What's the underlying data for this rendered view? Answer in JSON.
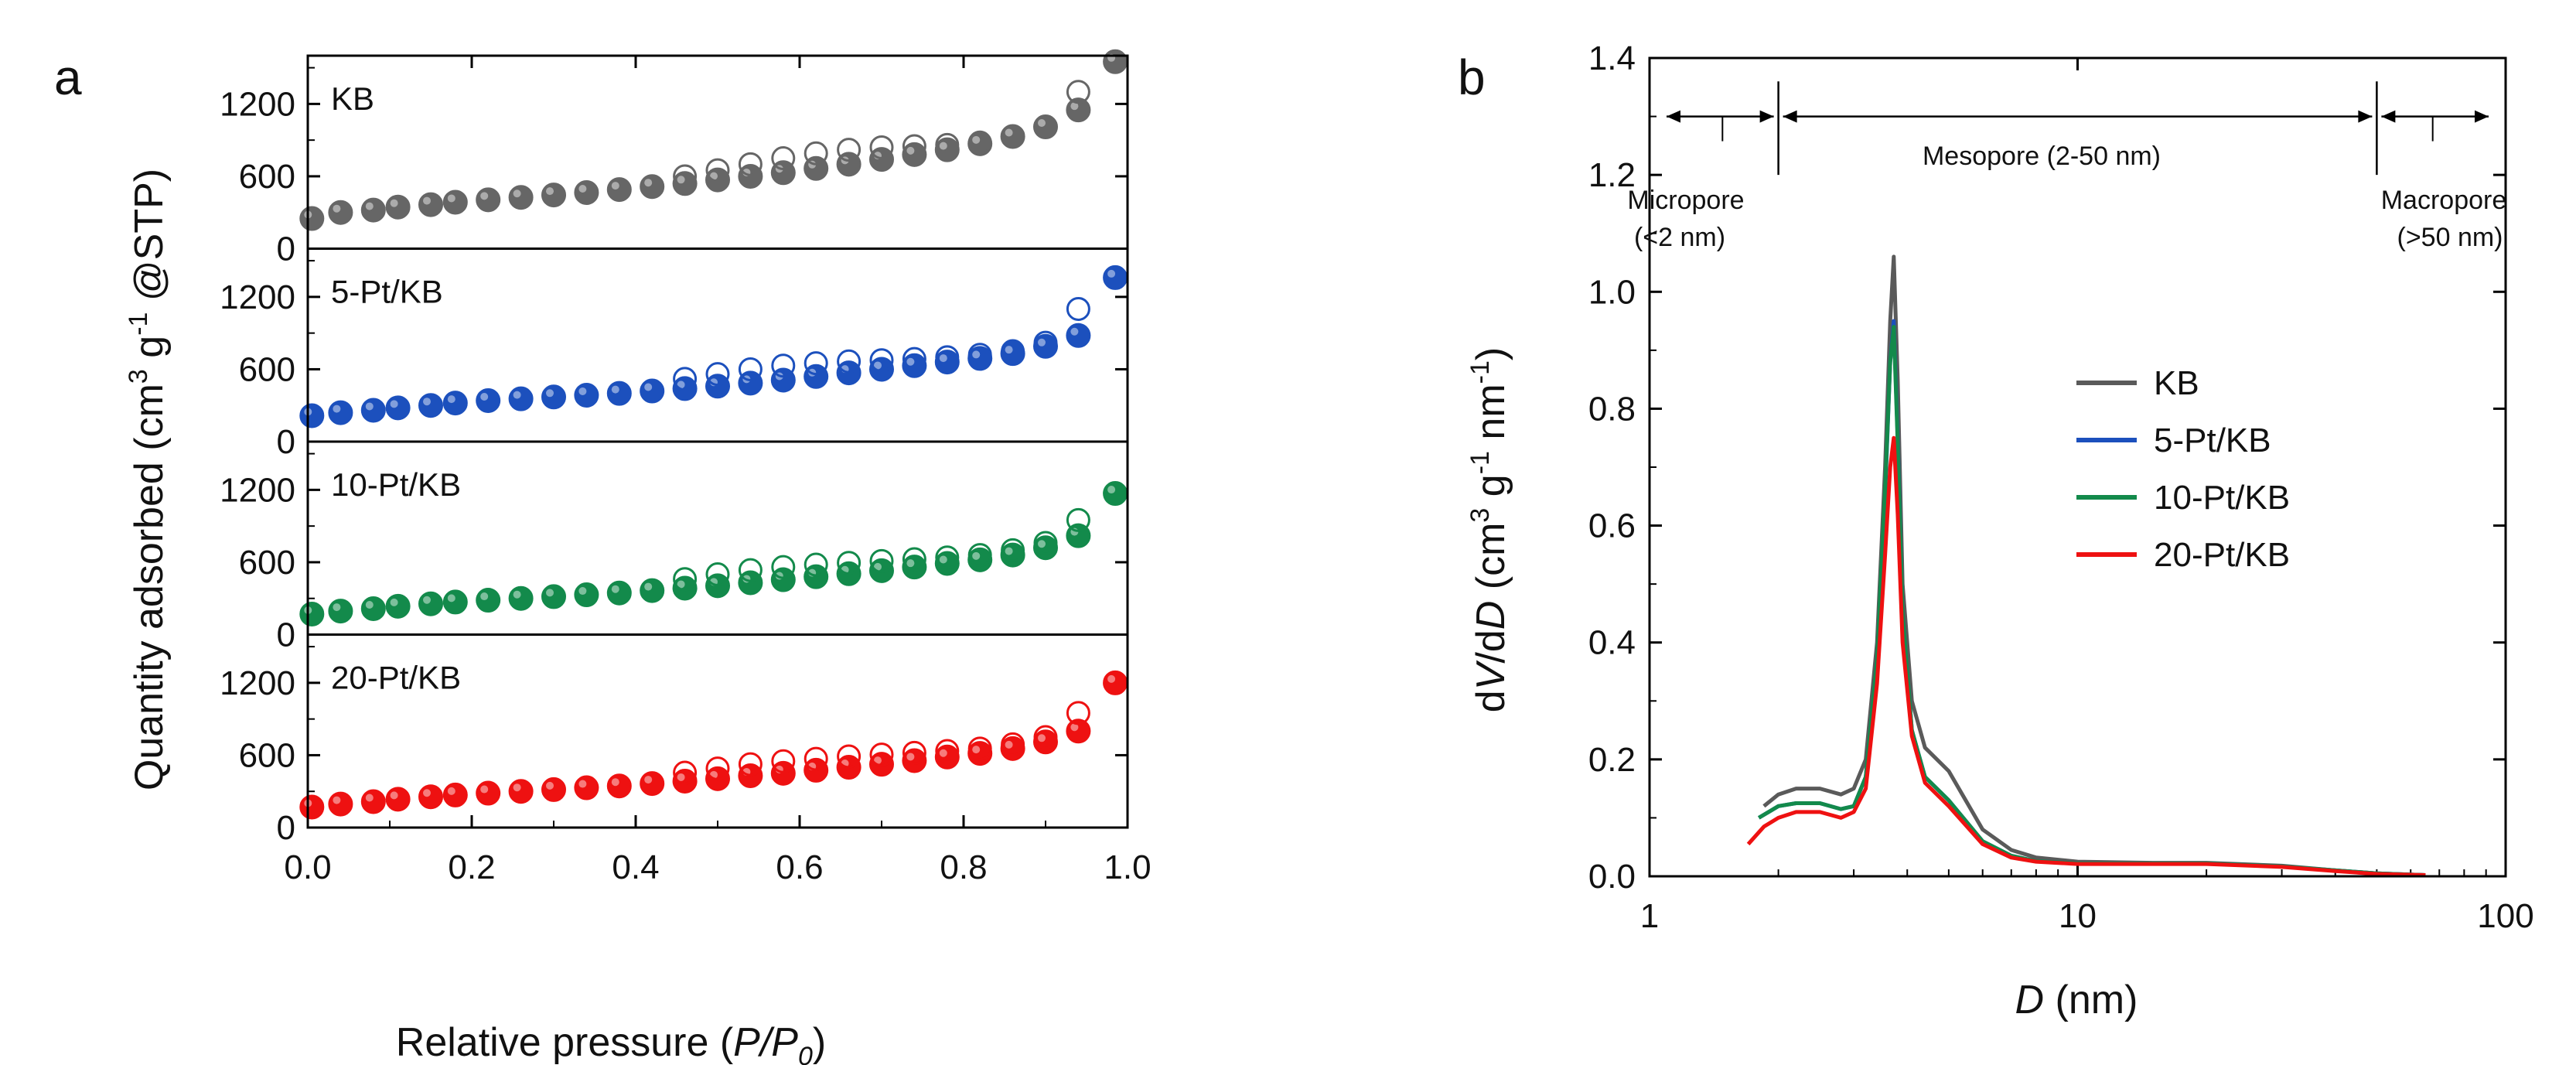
{
  "chart_data": [
    {
      "type": "scatter",
      "panel": "a",
      "title": "",
      "xlabel": "Relative pressure",
      "xlabel_var": "P/P",
      "xlabel_sub": "0",
      "ylabel": "Quantity adsorbed (cm",
      "ylabel_sup1": "3",
      "ylabel_mid": " g",
      "ylabel_sup2": "-1",
      "ylabel_end": " @STP)",
      "xlim": [
        0.0,
        1.0
      ],
      "xticks": [
        "0.0",
        "0.2",
        "0.4",
        "0.6",
        "0.8",
        "1.0"
      ],
      "ylim_each": [
        0,
        1600
      ],
      "yticks": [
        "0",
        "600",
        "1200"
      ],
      "x": [
        0.005,
        0.04,
        0.08,
        0.11,
        0.15,
        0.18,
        0.22,
        0.26,
        0.3,
        0.34,
        0.38,
        0.42,
        0.46,
        0.5,
        0.54,
        0.58,
        0.62,
        0.66,
        0.7,
        0.74,
        0.78,
        0.82,
        0.86,
        0.9,
        0.94,
        0.985
      ],
      "series": [
        {
          "name": "KB",
          "color": "#666666",
          "adsorption": [
            250,
            300,
            320,
            345,
            365,
            385,
            405,
            425,
            445,
            465,
            490,
            515,
            540,
            570,
            600,
            630,
            665,
            700,
            740,
            780,
            820,
            870,
            930,
            1010,
            1150,
            1550
          ],
          "desorption": [
            null,
            null,
            null,
            null,
            null,
            null,
            null,
            null,
            null,
            null,
            null,
            null,
            600,
            650,
            700,
            750,
            790,
            820,
            840,
            850,
            860,
            880,
            930,
            1010,
            1300,
            1550
          ]
        },
        {
          "name": "5-Pt/KB",
          "color": "#1c50bd",
          "adsorption": [
            215,
            240,
            260,
            280,
            300,
            320,
            340,
            355,
            370,
            385,
            400,
            420,
            440,
            460,
            485,
            510,
            540,
            570,
            600,
            630,
            660,
            690,
            730,
            790,
            880,
            1360
          ],
          "desorption": [
            null,
            null,
            null,
            null,
            null,
            null,
            null,
            null,
            null,
            null,
            null,
            null,
            520,
            560,
            600,
            630,
            650,
            665,
            675,
            685,
            700,
            720,
            750,
            820,
            1100,
            1360
          ]
        },
        {
          "name": "10-Pt/KB",
          "color": "#138a4b",
          "adsorption": [
            170,
            195,
            215,
            235,
            255,
            270,
            285,
            300,
            315,
            330,
            345,
            365,
            385,
            405,
            430,
            455,
            480,
            505,
            530,
            560,
            590,
            620,
            660,
            720,
            820,
            1170
          ],
          "desorption": [
            null,
            null,
            null,
            null,
            null,
            null,
            null,
            null,
            null,
            null,
            null,
            null,
            460,
            500,
            535,
            560,
            580,
            595,
            610,
            625,
            640,
            660,
            700,
            760,
            950,
            1170
          ]
        },
        {
          "name": "20-Pt/KB",
          "color": "#ee1111",
          "adsorption": [
            170,
            195,
            215,
            235,
            255,
            270,
            285,
            300,
            315,
            330,
            345,
            365,
            385,
            405,
            430,
            450,
            475,
            500,
            525,
            555,
            585,
            615,
            655,
            710,
            800,
            1200
          ],
          "desorption": [
            null,
            null,
            null,
            null,
            null,
            null,
            null,
            null,
            null,
            null,
            null,
            null,
            455,
            490,
            525,
            550,
            570,
            590,
            605,
            620,
            635,
            655,
            690,
            750,
            950,
            1200
          ]
        }
      ]
    },
    {
      "type": "line",
      "panel": "b",
      "title": "",
      "xlabel_var": "D",
      "xlabel": " (nm)",
      "ylabel_d1": "d",
      "ylabel_v": "V",
      "ylabel_d2": "/d",
      "ylabel_dv": "D",
      "ylabel_unit": " (cm",
      "ylabel_sup1": "3",
      "ylabel_mid": " g",
      "ylabel_sup2": "-1",
      "ylabel_nm": " nm",
      "ylabel_sup3": "-1",
      "ylabel_end": ")",
      "xscale": "log",
      "xlim": [
        1,
        100
      ],
      "xticks": [
        "1",
        "10",
        "100"
      ],
      "ylim": [
        0.0,
        1.4
      ],
      "yticks": [
        "0.0",
        "0.2",
        "0.4",
        "0.6",
        "0.8",
        "1.0",
        "1.2",
        "1.4"
      ],
      "legend_position": "center-right",
      "series": [
        {
          "name": "KB",
          "color": "#5a5a5a",
          "x": [
            1.85,
            2.0,
            2.2,
            2.5,
            2.8,
            3.0,
            3.2,
            3.4,
            3.55,
            3.65,
            3.72,
            3.8,
            3.9,
            4.1,
            4.4,
            5.0,
            6.0,
            7.0,
            8.0,
            10.0,
            15.0,
            20.0,
            30.0,
            40.0,
            50.0,
            65.0
          ],
          "y": [
            0.12,
            0.14,
            0.15,
            0.15,
            0.14,
            0.15,
            0.2,
            0.4,
            0.7,
            0.95,
            1.06,
            0.85,
            0.5,
            0.3,
            0.22,
            0.18,
            0.08,
            0.045,
            0.032,
            0.025,
            0.023,
            0.023,
            0.018,
            0.01,
            0.005,
            0.002
          ]
        },
        {
          "name": "5-Pt/KB",
          "color": "#1c50bd",
          "x": [
            1.8,
            2.0,
            2.2,
            2.5,
            2.8,
            3.0,
            3.2,
            3.4,
            3.55,
            3.65,
            3.72,
            3.8,
            3.9,
            4.1,
            4.4,
            5.0,
            6.0,
            7.0,
            8.0,
            10.0,
            15.0,
            20.0,
            30.0,
            40.0,
            50.0,
            65.0
          ],
          "y": [
            0.1,
            0.12,
            0.125,
            0.125,
            0.115,
            0.12,
            0.17,
            0.37,
            0.65,
            0.88,
            0.95,
            0.75,
            0.45,
            0.25,
            0.17,
            0.13,
            0.06,
            0.035,
            0.026,
            0.022,
            0.022,
            0.022,
            0.017,
            0.01,
            0.005,
            0.002
          ]
        },
        {
          "name": "10-Pt/KB",
          "color": "#138a4b",
          "x": [
            1.8,
            2.0,
            2.2,
            2.5,
            2.8,
            3.0,
            3.2,
            3.4,
            3.55,
            3.65,
            3.72,
            3.8,
            3.9,
            4.1,
            4.4,
            5.0,
            6.0,
            7.0,
            8.0,
            10.0,
            15.0,
            20.0,
            30.0,
            40.0,
            50.0,
            65.0
          ],
          "y": [
            0.1,
            0.12,
            0.125,
            0.125,
            0.115,
            0.12,
            0.17,
            0.37,
            0.66,
            0.88,
            0.94,
            0.74,
            0.45,
            0.25,
            0.17,
            0.13,
            0.06,
            0.035,
            0.026,
            0.022,
            0.022,
            0.022,
            0.017,
            0.01,
            0.005,
            0.002
          ]
        },
        {
          "name": "20-Pt/KB",
          "color": "#ee1111",
          "x": [
            1.7,
            1.85,
            2.0,
            2.2,
            2.5,
            2.8,
            3.0,
            3.2,
            3.4,
            3.55,
            3.65,
            3.72,
            3.8,
            3.9,
            4.1,
            4.4,
            5.0,
            6.0,
            7.0,
            8.0,
            10.0,
            15.0,
            20.0,
            30.0,
            40.0,
            50.0,
            65.0
          ],
          "y": [
            0.055,
            0.085,
            0.1,
            0.11,
            0.11,
            0.1,
            0.11,
            0.15,
            0.33,
            0.55,
            0.7,
            0.75,
            0.62,
            0.4,
            0.24,
            0.16,
            0.12,
            0.055,
            0.032,
            0.025,
            0.021,
            0.021,
            0.021,
            0.016,
            0.009,
            0.004,
            0.002
          ]
        }
      ],
      "annotations": {
        "micropore_line1": "Micropore",
        "micropore_line2": "(<2 nm)",
        "mesopore": "Mesopore (2-50 nm)",
        "macropore_line1": "Macropore",
        "macropore_line2": "(>50 nm)"
      }
    }
  ]
}
